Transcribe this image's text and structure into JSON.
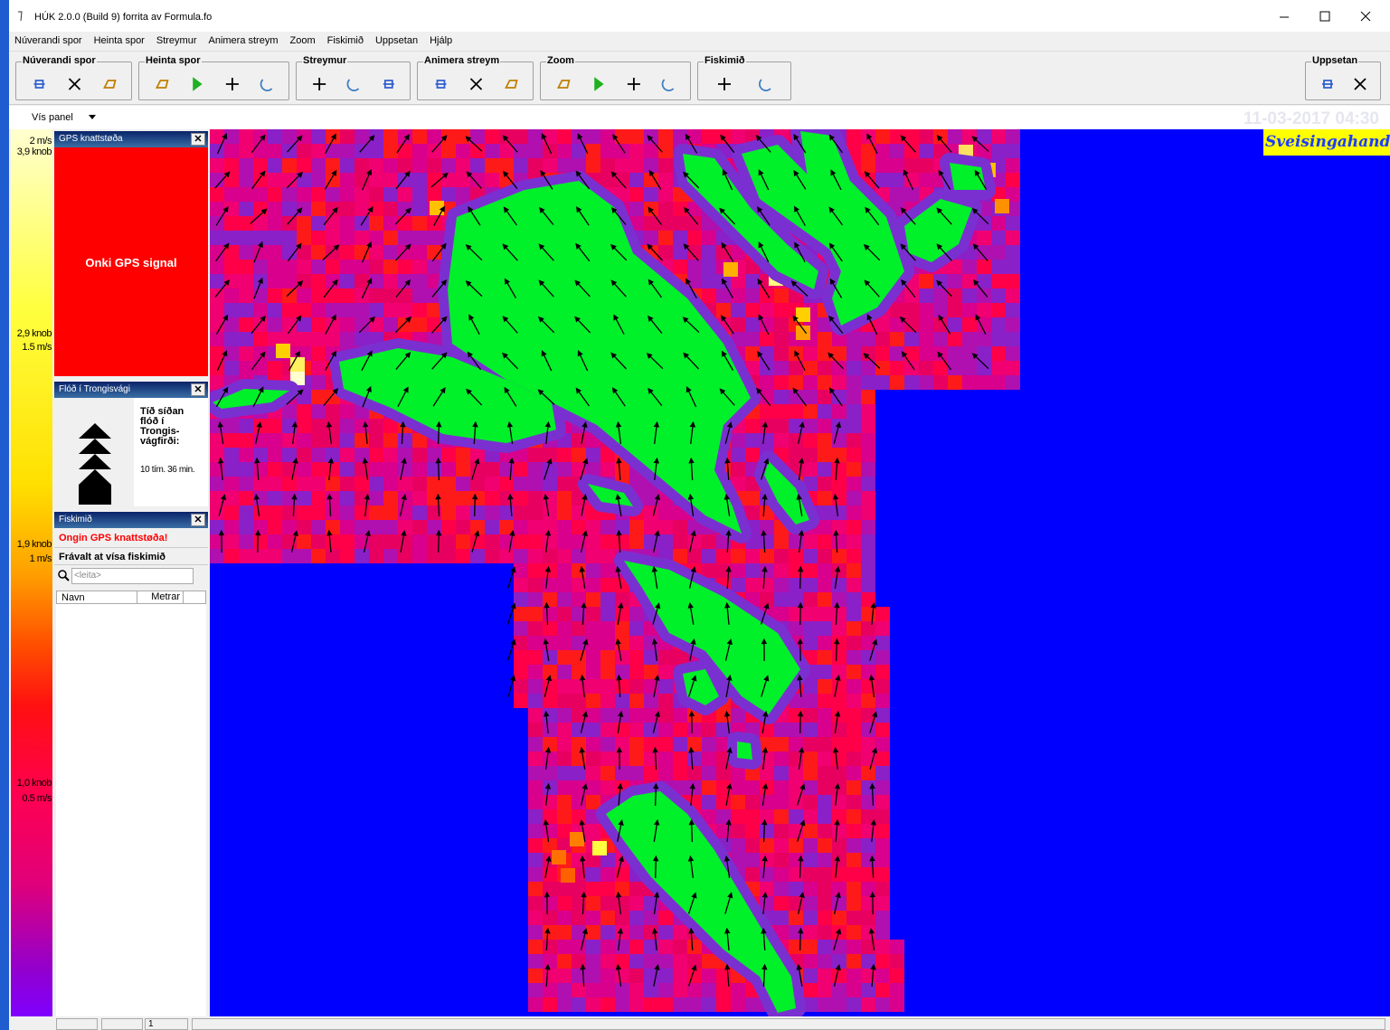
{
  "window": {
    "title": "HÚK 2.0.0  (Build 9) forrita av Formula.fo"
  },
  "menu": [
    "Núverandi spor",
    "Heinta spor",
    "Streymur",
    "Animera streym",
    "Zoom",
    "Fiskimið",
    "Uppsetan",
    "Hjálp"
  ],
  "toolbar": {
    "groups": [
      "Núverandi spor",
      "Heinta spor",
      "Streymur",
      "Animera streym",
      "Zoom",
      "Fiskimið",
      "Uppsetan"
    ]
  },
  "panel_toggle": "Vís panel",
  "scale": {
    "labels": [
      "2 m/s",
      "3,9 knob",
      "2,9 knob",
      "1.5 m/s",
      "1,9 knob",
      "1 m/s",
      "1,0 knob",
      "0.5 m/s"
    ]
  },
  "gps_panel": {
    "title": "GPS knattstøða",
    "message": "Onki GPS signal"
  },
  "flow_panel": {
    "title": "Flóð í Trongisvági",
    "heading": "Tíð síðan flóð í Trongis-vágfirði:",
    "time": "10 tím. 36 min."
  },
  "fish_panel": {
    "title": "Fiskimið",
    "warning": "Ongin GPS knattstøða!",
    "option": "Frávalt at vísa fiskimið",
    "search_placeholder": "<leita>",
    "columns": [
      "Navn",
      "Metrar"
    ]
  },
  "map": {
    "timestamp": "11-03-2017 04:30",
    "watermark": "Sveisingahandilin"
  },
  "status_bar": {
    "fields": [
      "1"
    ]
  }
}
